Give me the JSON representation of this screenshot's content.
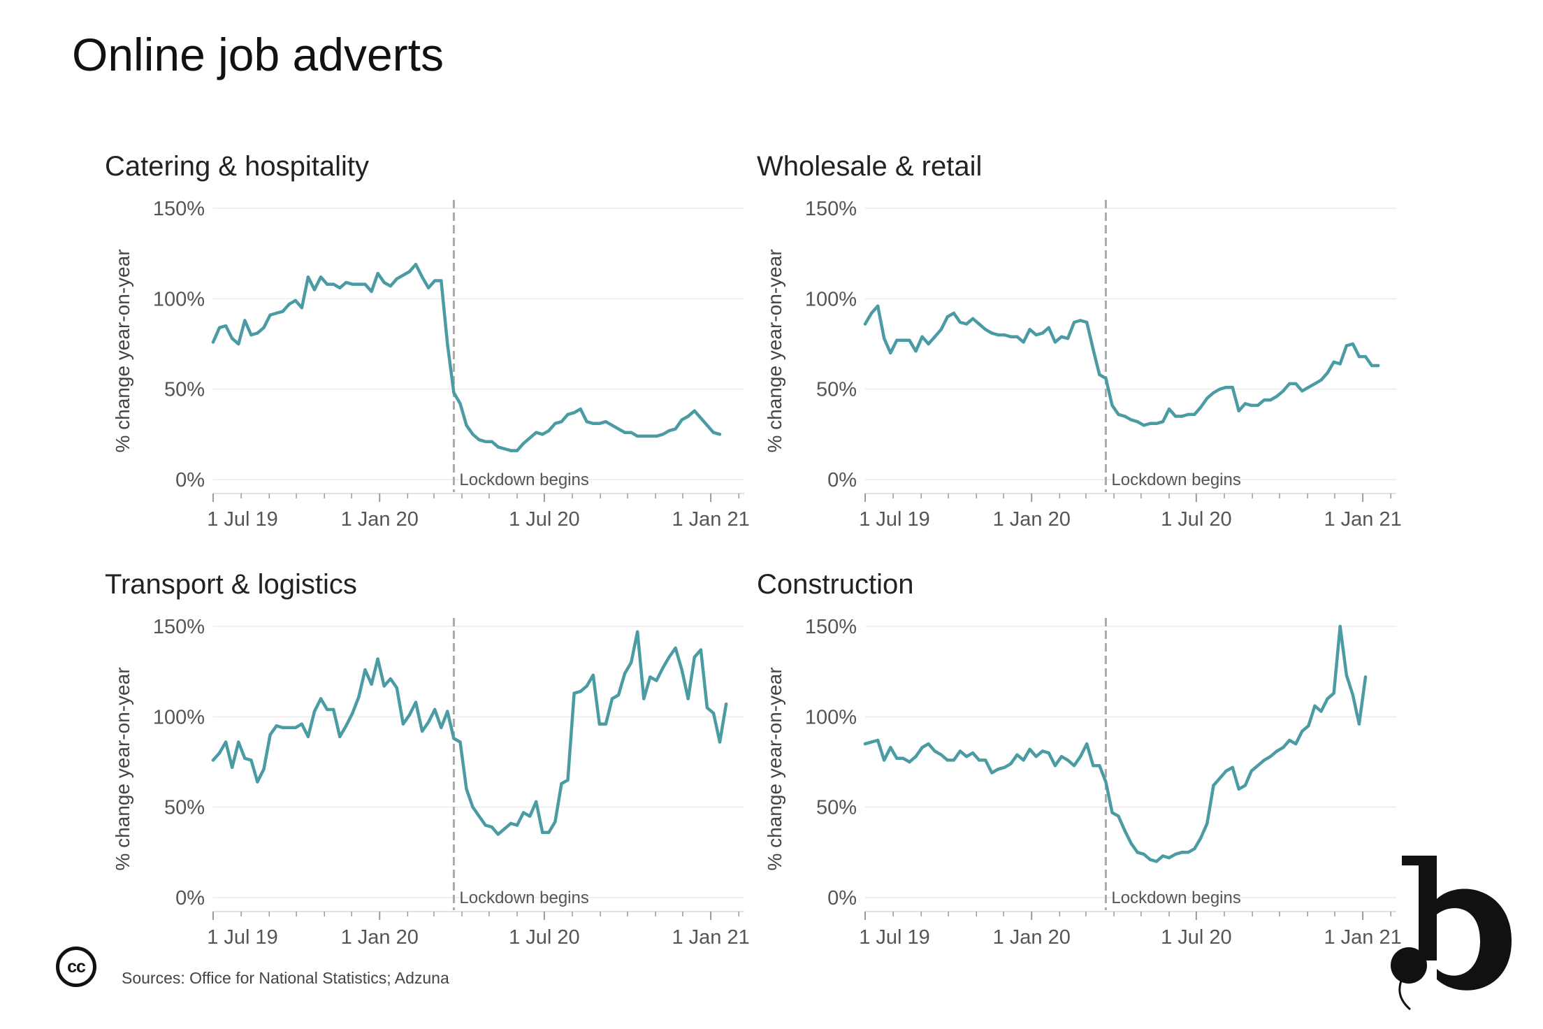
{
  "page": {
    "title": "Online job adverts",
    "sources": "Sources: Office for National Statistics; Adzuna",
    "cc_text": "cc",
    "logo_letter": "b",
    "line_color": "#4a9ba3",
    "lockdown_color": "#aaaaaa"
  },
  "chart_data": [
    {
      "type": "line",
      "title": "Catering & hospitality",
      "ylabel": "% change year-on-year",
      "xlabel": "",
      "x_ticks": [
        "1 Jul 19",
        "1 Jan 20",
        "1 Jul 20",
        "1 Jan 21"
      ],
      "y_ticks": [
        "0%",
        "50%",
        "100%",
        "150%"
      ],
      "y_tick_values": [
        0,
        50,
        100,
        150
      ],
      "annotation": "Lockdown begins",
      "lockdown_x": "2020-03-23",
      "x_range": [
        "2019-07-01",
        "2021-02-07"
      ],
      "ylim": [
        0,
        150
      ],
      "grid": true,
      "series": [
        {
          "x": [
            "2019-07-01",
            "2019-07-08",
            "2019-07-15",
            "2019-07-22",
            "2019-07-29",
            "2019-08-05",
            "2019-08-12",
            "2019-08-19",
            "2019-08-26",
            "2019-09-02",
            "2019-09-09",
            "2019-09-16",
            "2019-09-23",
            "2019-09-30",
            "2019-10-07",
            "2019-10-14",
            "2019-10-21",
            "2019-10-28",
            "2019-11-04",
            "2019-11-11",
            "2019-11-18",
            "2019-11-25",
            "2019-12-02",
            "2019-12-09",
            "2019-12-16",
            "2019-12-23",
            "2019-12-30",
            "2020-01-06",
            "2020-01-13",
            "2020-01-20",
            "2020-01-27",
            "2020-02-03",
            "2020-02-10",
            "2020-02-17",
            "2020-02-24",
            "2020-03-02",
            "2020-03-09",
            "2020-03-16",
            "2020-03-23",
            "2020-03-30",
            "2020-04-06",
            "2020-04-13",
            "2020-04-20",
            "2020-04-27",
            "2020-05-04",
            "2020-05-11",
            "2020-05-18",
            "2020-05-25",
            "2020-06-01",
            "2020-06-08",
            "2020-06-15",
            "2020-06-22",
            "2020-06-29",
            "2020-07-06",
            "2020-07-13",
            "2020-07-20",
            "2020-07-27",
            "2020-08-03",
            "2020-08-10",
            "2020-08-17",
            "2020-08-24",
            "2020-08-31",
            "2020-09-07",
            "2020-09-14",
            "2020-09-21",
            "2020-09-28",
            "2020-10-05",
            "2020-10-12",
            "2020-10-19",
            "2020-10-26",
            "2020-11-02",
            "2020-11-09",
            "2020-11-16",
            "2020-11-23",
            "2020-11-30",
            "2020-12-07",
            "2020-12-14",
            "2020-12-21",
            "2020-12-28",
            "2021-01-04",
            "2021-01-11",
            "2021-01-18",
            "2021-01-25"
          ],
          "values": [
            76,
            84,
            85,
            78,
            75,
            88,
            80,
            81,
            84,
            91,
            92,
            93,
            97,
            99,
            95,
            112,
            105,
            112,
            108,
            108,
            106,
            109,
            108,
            108,
            108,
            104,
            114,
            109,
            107,
            111,
            113,
            115,
            119,
            112,
            106,
            110,
            110,
            75,
            48,
            42,
            30,
            25,
            22,
            21,
            21,
            18,
            17,
            16,
            16,
            20,
            23,
            26,
            25,
            27,
            31,
            32,
            36,
            37,
            39,
            32,
            31,
            31,
            32,
            30,
            28,
            26,
            26,
            24,
            24,
            24,
            24,
            25,
            27,
            28,
            33,
            35,
            38,
            34,
            30,
            26,
            25,
            null,
            null
          ]
        }
      ]
    },
    {
      "type": "line",
      "title": "Wholesale & retail",
      "ylabel": "% change year-on-year",
      "xlabel": "",
      "x_ticks": [
        "1 Jul 19",
        "1 Jan 20",
        "1 Jul 20",
        "1 Jan 21"
      ],
      "y_ticks": [
        "0%",
        "50%",
        "100%",
        "150%"
      ],
      "y_tick_values": [
        0,
        50,
        100,
        150
      ],
      "annotation": "Lockdown begins",
      "lockdown_x": "2020-03-23",
      "x_range": [
        "2019-07-01",
        "2021-02-07"
      ],
      "ylim": [
        0,
        150
      ],
      "grid": true,
      "series": [
        {
          "x": [
            "2019-07-01",
            "2019-07-08",
            "2019-07-15",
            "2019-07-22",
            "2019-07-29",
            "2019-08-05",
            "2019-08-12",
            "2019-08-19",
            "2019-08-26",
            "2019-09-02",
            "2019-09-09",
            "2019-09-16",
            "2019-09-23",
            "2019-09-30",
            "2019-10-07",
            "2019-10-14",
            "2019-10-21",
            "2019-10-28",
            "2019-11-04",
            "2019-11-11",
            "2019-11-18",
            "2019-11-25",
            "2019-12-02",
            "2019-12-09",
            "2019-12-16",
            "2019-12-23",
            "2019-12-30",
            "2020-01-06",
            "2020-01-13",
            "2020-01-20",
            "2020-01-27",
            "2020-02-03",
            "2020-02-10",
            "2020-02-17",
            "2020-02-24",
            "2020-03-02",
            "2020-03-09",
            "2020-03-16",
            "2020-03-23",
            "2020-03-30",
            "2020-04-06",
            "2020-04-13",
            "2020-04-20",
            "2020-04-27",
            "2020-05-04",
            "2020-05-11",
            "2020-05-18",
            "2020-05-25",
            "2020-06-01",
            "2020-06-08",
            "2020-06-15",
            "2020-06-22",
            "2020-06-29",
            "2020-07-06",
            "2020-07-13",
            "2020-07-20",
            "2020-07-27",
            "2020-08-03",
            "2020-08-10",
            "2020-08-17",
            "2020-08-24",
            "2020-08-31",
            "2020-09-07",
            "2020-09-14",
            "2020-09-21",
            "2020-09-28",
            "2020-10-05",
            "2020-10-12",
            "2020-10-19",
            "2020-10-26",
            "2020-11-02",
            "2020-11-09",
            "2020-11-16",
            "2020-11-23",
            "2020-11-30",
            "2020-12-07",
            "2020-12-14",
            "2020-12-21",
            "2020-12-28",
            "2021-01-04",
            "2021-01-11",
            "2021-01-18",
            "2021-01-25"
          ],
          "values": [
            86,
            92,
            96,
            78,
            70,
            77,
            77,
            77,
            71,
            79,
            75,
            79,
            83,
            90,
            92,
            87,
            86,
            89,
            86,
            83,
            81,
            80,
            80,
            79,
            79,
            76,
            83,
            80,
            81,
            84,
            76,
            79,
            78,
            87,
            88,
            87,
            72,
            58,
            56,
            41,
            36,
            35,
            33,
            32,
            30,
            31,
            31,
            32,
            39,
            35,
            35,
            36,
            36,
            40,
            45,
            48,
            50,
            51,
            51,
            38,
            42,
            41,
            41,
            44,
            44,
            46,
            49,
            53,
            53,
            49,
            51,
            53,
            55,
            59,
            65,
            64,
            74,
            75,
            68,
            68,
            63,
            63,
            null
          ]
        }
      ]
    },
    {
      "type": "line",
      "title": "Transport & logistics",
      "ylabel": "% change year-on-year",
      "xlabel": "",
      "x_ticks": [
        "1 Jul 19",
        "1 Jan 20",
        "1 Jul 20",
        "1 Jan 21"
      ],
      "y_ticks": [
        "0%",
        "50%",
        "100%",
        "150%"
      ],
      "y_tick_values": [
        0,
        50,
        100,
        150
      ],
      "annotation": "Lockdown begins",
      "lockdown_x": "2020-03-23",
      "x_range": [
        "2019-07-01",
        "2021-02-07"
      ],
      "ylim": [
        0,
        150
      ],
      "grid": true,
      "series": [
        {
          "x": [
            "2019-07-01",
            "2019-07-08",
            "2019-07-15",
            "2019-07-22",
            "2019-07-29",
            "2019-08-05",
            "2019-08-12",
            "2019-08-19",
            "2019-08-26",
            "2019-09-02",
            "2019-09-09",
            "2019-09-16",
            "2019-09-23",
            "2019-09-30",
            "2019-10-07",
            "2019-10-14",
            "2019-10-21",
            "2019-10-28",
            "2019-11-04",
            "2019-11-11",
            "2019-11-18",
            "2019-11-25",
            "2019-12-02",
            "2019-12-09",
            "2019-12-16",
            "2019-12-23",
            "2019-12-30",
            "2020-01-06",
            "2020-01-13",
            "2020-01-20",
            "2020-01-27",
            "2020-02-03",
            "2020-02-10",
            "2020-02-17",
            "2020-02-24",
            "2020-03-02",
            "2020-03-09",
            "2020-03-16",
            "2020-03-23",
            "2020-03-30",
            "2020-04-06",
            "2020-04-13",
            "2020-04-20",
            "2020-04-27",
            "2020-05-04",
            "2020-05-11",
            "2020-05-18",
            "2020-05-25",
            "2020-06-01",
            "2020-06-08",
            "2020-06-15",
            "2020-06-22",
            "2020-06-29",
            "2020-07-06",
            "2020-07-13",
            "2020-07-20",
            "2020-07-27",
            "2020-08-03",
            "2020-08-10",
            "2020-08-17",
            "2020-08-24",
            "2020-08-31",
            "2020-09-07",
            "2020-09-14",
            "2020-09-21",
            "2020-09-28",
            "2020-10-05",
            "2020-10-12",
            "2020-10-19",
            "2020-10-26",
            "2020-11-02",
            "2020-11-09",
            "2020-11-16",
            "2020-11-23",
            "2020-11-30",
            "2020-12-07",
            "2020-12-14",
            "2020-12-21",
            "2020-12-28",
            "2021-01-04",
            "2021-01-11",
            "2021-01-18",
            "2021-01-25"
          ],
          "values": [
            76,
            80,
            86,
            72,
            86,
            77,
            76,
            64,
            71,
            90,
            95,
            94,
            94,
            94,
            96,
            89,
            103,
            110,
            104,
            104,
            89,
            95,
            102,
            111,
            126,
            118,
            132,
            117,
            121,
            116,
            96,
            101,
            108,
            92,
            97,
            104,
            94,
            103,
            88,
            86,
            60,
            50,
            45,
            40,
            39,
            35,
            38,
            41,
            40,
            47,
            45,
            53,
            36,
            36,
            42,
            63,
            65,
            113,
            114,
            117,
            123,
            96,
            96,
            110,
            112,
            124,
            130,
            147,
            110,
            122,
            120,
            127,
            133,
            138,
            126,
            110,
            133,
            137,
            105,
            102,
            86,
            107,
            null
          ]
        }
      ]
    },
    {
      "type": "line",
      "title": "Construction",
      "ylabel": "% change year-on-year",
      "xlabel": "",
      "x_ticks": [
        "1 Jul 19",
        "1 Jan 20",
        "1 Jul 20",
        "1 Jan 21"
      ],
      "y_ticks": [
        "0%",
        "50%",
        "100%",
        "150%"
      ],
      "y_tick_values": [
        0,
        50,
        100,
        150
      ],
      "annotation": "Lockdown begins",
      "lockdown_x": "2020-03-23",
      "x_range": [
        "2019-07-01",
        "2021-02-07"
      ],
      "ylim": [
        0,
        150
      ],
      "grid": true,
      "series": [
        {
          "x": [
            "2019-07-01",
            "2019-07-08",
            "2019-07-15",
            "2019-07-22",
            "2019-07-29",
            "2019-08-05",
            "2019-08-12",
            "2019-08-19",
            "2019-08-26",
            "2019-09-02",
            "2019-09-09",
            "2019-09-16",
            "2019-09-23",
            "2019-09-30",
            "2019-10-07",
            "2019-10-14",
            "2019-10-21",
            "2019-10-28",
            "2019-11-04",
            "2019-11-11",
            "2019-11-18",
            "2019-11-25",
            "2019-12-02",
            "2019-12-09",
            "2019-12-16",
            "2019-12-23",
            "2019-12-30",
            "2020-01-06",
            "2020-01-13",
            "2020-01-20",
            "2020-01-27",
            "2020-02-03",
            "2020-02-10",
            "2020-02-17",
            "2020-02-24",
            "2020-03-02",
            "2020-03-09",
            "2020-03-16",
            "2020-03-23",
            "2020-03-30",
            "2020-04-06",
            "2020-04-13",
            "2020-04-20",
            "2020-04-27",
            "2020-05-04",
            "2020-05-11",
            "2020-05-18",
            "2020-05-25",
            "2020-06-01",
            "2020-06-08",
            "2020-06-15",
            "2020-06-22",
            "2020-06-29",
            "2020-07-06",
            "2020-07-13",
            "2020-07-20",
            "2020-07-27",
            "2020-08-03",
            "2020-08-10",
            "2020-08-17",
            "2020-08-24",
            "2020-08-31",
            "2020-09-07",
            "2020-09-14",
            "2020-09-21",
            "2020-09-28",
            "2020-10-05",
            "2020-10-12",
            "2020-10-19",
            "2020-10-26",
            "2020-11-02",
            "2020-11-09",
            "2020-11-16",
            "2020-11-23",
            "2020-11-30",
            "2020-12-07",
            "2020-12-14",
            "2020-12-21",
            "2020-12-28",
            "2021-01-04",
            "2021-01-11",
            "2021-01-18",
            "2021-01-25"
          ],
          "values": [
            85,
            86,
            87,
            76,
            83,
            77,
            77,
            75,
            78,
            83,
            85,
            81,
            79,
            76,
            76,
            81,
            78,
            80,
            76,
            76,
            69,
            71,
            72,
            74,
            79,
            76,
            82,
            78,
            81,
            80,
            73,
            78,
            76,
            73,
            78,
            85,
            73,
            73,
            64,
            47,
            45,
            37,
            30,
            25,
            24,
            21,
            20,
            23,
            22,
            24,
            25,
            25,
            27,
            33,
            41,
            62,
            66,
            70,
            72,
            60,
            62,
            70,
            73,
            76,
            78,
            81,
            83,
            87,
            85,
            92,
            95,
            106,
            103,
            110,
            113,
            150,
            123,
            112,
            96,
            122,
            null,
            null,
            null
          ]
        }
      ]
    }
  ]
}
